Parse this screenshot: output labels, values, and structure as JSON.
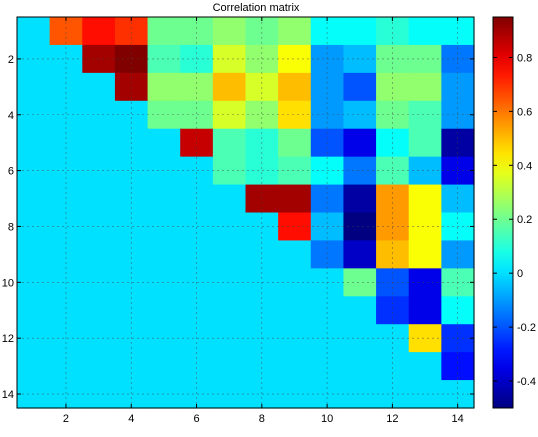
{
  "chart_data": {
    "type": "heatmap",
    "title": "Correlation matrix",
    "xlabel": "",
    "ylabel": "",
    "x_ticks": [
      2,
      4,
      6,
      8,
      10,
      12,
      14
    ],
    "y_ticks": [
      2,
      4,
      6,
      8,
      10,
      12,
      14
    ],
    "grid": true,
    "colormap": "jet",
    "colorbar": {
      "range": [
        -0.5,
        0.95
      ],
      "ticks": [
        -0.4,
        -0.2,
        0,
        0.2,
        0.4,
        0.6,
        0.8
      ],
      "tick_labels": [
        "-0.4",
        "-0.2",
        "0",
        "0.2",
        "0.4",
        "0.6",
        "0.8"
      ],
      "placement": "right"
    },
    "matrix": [
      [
        0,
        0.65,
        0.75,
        0.7,
        0.2,
        0.2,
        0.25,
        0.2,
        0.25,
        0.05,
        0.05,
        0.1,
        0.05,
        0.05
      ],
      [
        0,
        0,
        0.9,
        0.95,
        0.15,
        0.1,
        0.35,
        0.25,
        0.4,
        -0.1,
        -0.05,
        0.2,
        0.2,
        -0.15
      ],
      [
        0,
        0,
        0,
        0.9,
        0.25,
        0.25,
        0.5,
        0.35,
        0.5,
        -0.1,
        -0.2,
        0.25,
        0.25,
        -0.1
      ],
      [
        0,
        0,
        0,
        0,
        0.2,
        0.2,
        0.35,
        0.25,
        0.45,
        -0.1,
        -0.05,
        0.2,
        0.15,
        -0.1
      ],
      [
        0,
        0,
        0,
        0,
        0,
        0.85,
        0.15,
        0.1,
        0.2,
        -0.2,
        -0.35,
        0.05,
        0.15,
        -0.45
      ],
      [
        0,
        0,
        0,
        0,
        0,
        0,
        0.15,
        0.1,
        0.15,
        0.05,
        -0.15,
        0.15,
        -0.05,
        -0.35
      ],
      [
        0,
        0,
        0,
        0,
        0,
        0,
        0,
        0.9,
        0.9,
        -0.15,
        -0.45,
        0.55,
        0.4,
        -0.05
      ],
      [
        0,
        0,
        0,
        0,
        0,
        0,
        0,
        0,
        0.75,
        -0.05,
        -0.5,
        0.55,
        0.4,
        0.05
      ],
      [
        0,
        0,
        0,
        0,
        0,
        0,
        0,
        0,
        0,
        -0.15,
        -0.4,
        0.5,
        0.4,
        -0.1
      ],
      [
        0,
        0,
        0,
        0,
        0,
        0,
        0,
        0,
        0,
        0,
        0.2,
        -0.2,
        -0.35,
        0.15
      ],
      [
        0,
        0,
        0,
        0,
        0,
        0,
        0,
        0,
        0,
        0,
        0,
        -0.25,
        -0.35,
        0.05
      ],
      [
        0,
        0,
        0,
        0,
        0,
        0,
        0,
        0,
        0,
        0,
        0,
        0,
        0.45,
        -0.25
      ],
      [
        0,
        0,
        0,
        0,
        0,
        0,
        0,
        0,
        0,
        0,
        0,
        0,
        0,
        -0.3
      ],
      [
        0,
        0,
        0,
        0,
        0,
        0,
        0,
        0,
        0,
        0,
        0,
        0,
        0,
        0
      ]
    ]
  }
}
